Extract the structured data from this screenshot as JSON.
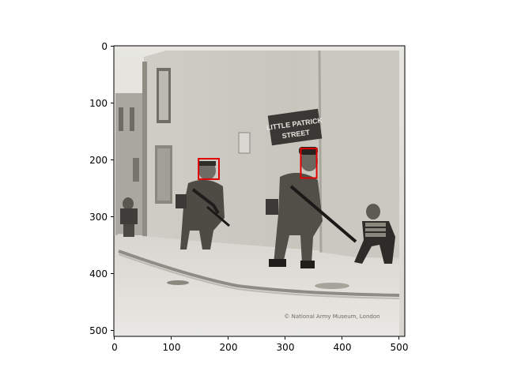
{
  "figure": {
    "image_description_tag": "photo-soldiers-street-corner",
    "x_ticks": [
      "0",
      "100",
      "200",
      "300",
      "400",
      "500"
    ],
    "y_ticks": [
      "0",
      "100",
      "200",
      "300",
      "400",
      "500"
    ],
    "street_sign": {
      "line1": "LITTLE PATRICK",
      "line2": "STREET"
    },
    "watermark": "© National Army Museum, London",
    "detection_box_color": "#e00000",
    "detection_boxes": [
      {
        "label": "face-1",
        "x0": 149,
        "y0": 199,
        "x1": 185,
        "y1": 235
      },
      {
        "label": "face-2",
        "x0": 329,
        "y0": 181,
        "x1": 357,
        "y1": 233
      }
    ]
  }
}
